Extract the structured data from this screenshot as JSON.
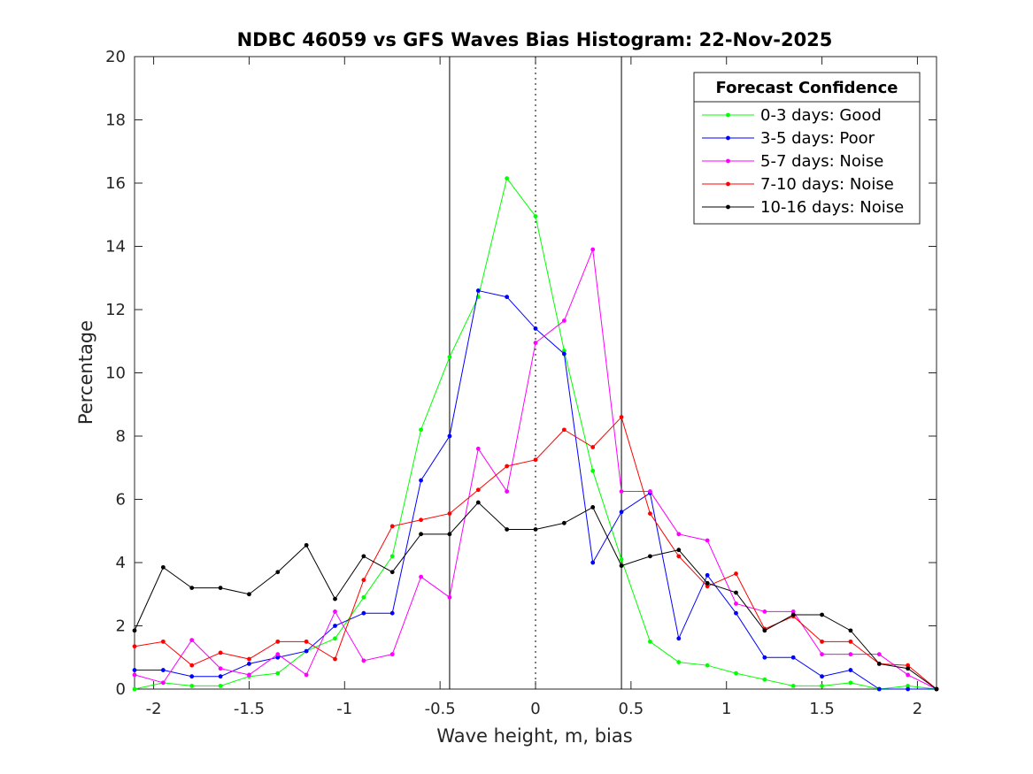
{
  "chart_data": {
    "type": "line",
    "title": "NDBC 46059 vs GFS Waves Bias Histogram: 22-Nov-2025",
    "xlabel": "Wave height, m, bias",
    "ylabel": "Percentage",
    "xlim": [
      -2.1,
      2.1
    ],
    "ylim": [
      0,
      20
    ],
    "xticks": [
      -2,
      -1.5,
      -1,
      -0.5,
      0,
      0.5,
      1,
      1.5,
      2
    ],
    "xtick_labels": [
      "-2",
      "-1.5",
      "-1",
      "-0.5",
      "0",
      "0.5",
      "1",
      "1.5",
      "2"
    ],
    "yticks": [
      0,
      2,
      4,
      6,
      8,
      10,
      12,
      14,
      16,
      18,
      20
    ],
    "ytick_labels": [
      "0",
      "2",
      "4",
      "6",
      "8",
      "10",
      "12",
      "14",
      "16",
      "18",
      "20"
    ],
    "grid": false,
    "vlines": [
      {
        "x": -0.45,
        "style": "solid"
      },
      {
        "x": 0,
        "style": "dotted"
      },
      {
        "x": 0.45,
        "style": "solid"
      }
    ],
    "legend": {
      "title": "Forecast Confidence",
      "location": "top-right"
    },
    "x": [
      -2.1,
      -1.95,
      -1.8,
      -1.65,
      -1.5,
      -1.35,
      -1.2,
      -1.05,
      -0.9,
      -0.75,
      -0.6,
      -0.45,
      -0.3,
      -0.15,
      0,
      0.15,
      0.3,
      0.45,
      0.6,
      0.75,
      0.9,
      1.05,
      1.2,
      1.35,
      1.5,
      1.65,
      1.8,
      1.95,
      2.1
    ],
    "series": [
      {
        "name": "0-3 days: Good",
        "color": "#00ff00",
        "values": [
          0.0,
          0.2,
          0.1,
          0.1,
          0.4,
          0.5,
          1.2,
          1.6,
          2.9,
          4.2,
          8.2,
          10.5,
          12.4,
          16.15,
          14.95,
          10.7,
          6.9,
          4.1,
          1.5,
          0.85,
          0.75,
          0.5,
          0.3,
          0.1,
          0.1,
          0.2,
          0.0,
          0.1,
          0.0
        ]
      },
      {
        "name": "3-5 days: Poor",
        "color": "#0000ff",
        "values": [
          0.6,
          0.6,
          0.4,
          0.4,
          0.8,
          1.0,
          1.2,
          2.0,
          2.4,
          2.4,
          6.6,
          8.0,
          12.6,
          12.4,
          11.4,
          10.6,
          4.0,
          5.6,
          6.2,
          1.6,
          3.6,
          2.4,
          1.0,
          1.0,
          0.4,
          0.6,
          0.0,
          0.0,
          0.0
        ]
      },
      {
        "name": "5-7 days: Noise",
        "color": "#ff00ff",
        "values": [
          0.45,
          0.2,
          1.55,
          0.65,
          0.45,
          1.1,
          0.45,
          2.45,
          0.9,
          1.1,
          3.55,
          2.9,
          7.6,
          6.25,
          10.95,
          11.65,
          13.9,
          6.25,
          6.25,
          4.9,
          4.7,
          2.7,
          2.45,
          2.45,
          1.1,
          1.1,
          1.1,
          0.45,
          0.0
        ]
      },
      {
        "name": "7-10 days: Noise",
        "color": "#ff0000",
        "values": [
          1.35,
          1.5,
          0.75,
          1.15,
          0.95,
          1.5,
          1.5,
          0.95,
          3.45,
          5.15,
          5.35,
          5.55,
          6.3,
          7.05,
          7.25,
          8.2,
          7.65,
          8.6,
          5.55,
          4.2,
          3.25,
          3.65,
          1.9,
          2.3,
          1.5,
          1.5,
          0.8,
          0.75,
          0.0
        ]
      },
      {
        "name": "10-16 days: Noise",
        "color": "#000000",
        "values": [
          1.85,
          3.85,
          3.2,
          3.2,
          3.0,
          3.7,
          4.55,
          2.85,
          4.2,
          3.7,
          4.9,
          4.9,
          5.9,
          5.05,
          5.05,
          5.25,
          5.75,
          3.9,
          4.2,
          4.4,
          3.35,
          3.05,
          1.85,
          2.35,
          2.35,
          1.85,
          0.8,
          0.65,
          0.0
        ]
      }
    ]
  }
}
